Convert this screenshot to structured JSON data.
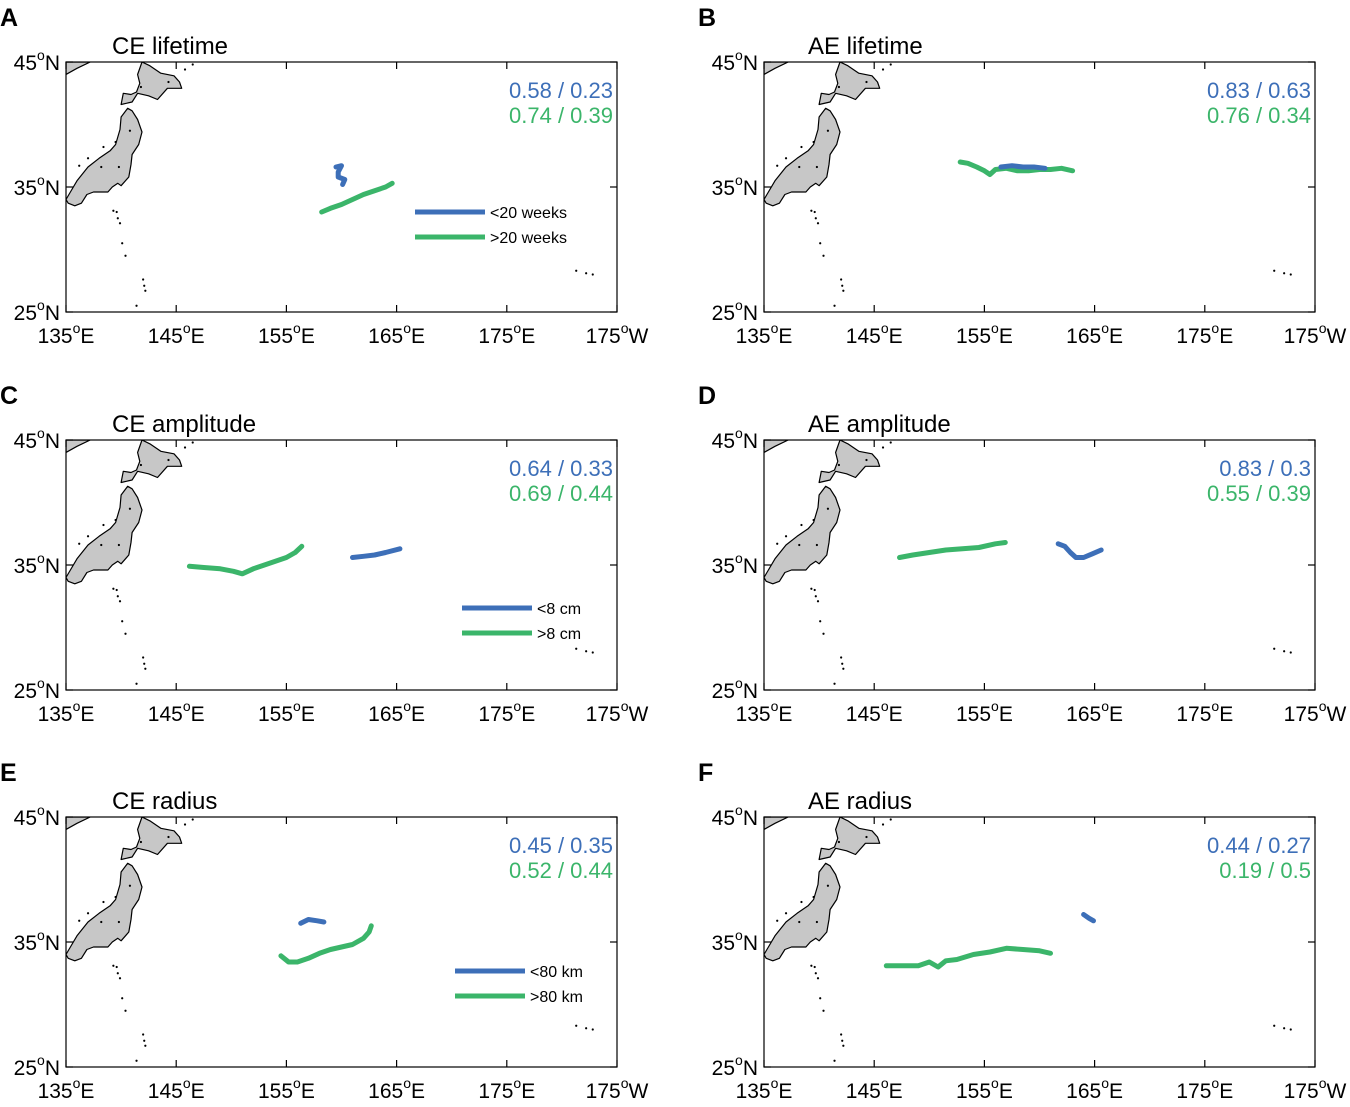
{
  "figure": {
    "type": "map",
    "colors": {
      "blue": "#3d6fb8",
      "green": "#3bb56a",
      "land": "#c7c7c7",
      "coast": "#000000"
    },
    "lat_labels": [
      {
        "value": 45,
        "num": "45",
        "hemi": "N"
      },
      {
        "value": 35,
        "num": "35",
        "hemi": "N"
      },
      {
        "value": 25,
        "num": "25",
        "hemi": "N"
      }
    ],
    "lon_labels": [
      {
        "value": 135,
        "num": "135",
        "hemi": "E"
      },
      {
        "value": 145,
        "num": "145",
        "hemi": "E"
      },
      {
        "value": 155,
        "num": "155",
        "hemi": "E"
      },
      {
        "value": 165,
        "num": "165",
        "hemi": "E"
      },
      {
        "value": 175,
        "num": "175",
        "hemi": "E"
      },
      {
        "value": 185,
        "num": "175",
        "hemi": "W"
      }
    ],
    "degree_symbol": "o",
    "extent": {
      "lon": [
        135,
        185
      ],
      "lat": [
        25,
        45
      ]
    }
  },
  "panels": [
    {
      "letter": "A",
      "title": "CE lifetime",
      "stats": {
        "blue": "0.58 / 0.23",
        "green": "0.74 / 0.39"
      },
      "legend": {
        "blue": "<20 weeks",
        "green": ">20 weeks"
      },
      "tracks": {
        "blue": [
          [
            159.5,
            36.6
          ],
          [
            160.0,
            36.7
          ],
          [
            159.7,
            36.2
          ],
          [
            159.7,
            35.8
          ],
          [
            160.3,
            35.6
          ],
          [
            160.1,
            35.2
          ]
        ],
        "green": [
          [
            158.2,
            33.0
          ],
          [
            159.0,
            33.3
          ],
          [
            160.0,
            33.6
          ],
          [
            161.0,
            34.0
          ],
          [
            162.0,
            34.4
          ],
          [
            163.0,
            34.7
          ],
          [
            164.0,
            35.0
          ],
          [
            164.6,
            35.3
          ]
        ]
      }
    },
    {
      "letter": "B",
      "title": "AE lifetime",
      "stats": {
        "blue": "0.83 / 0.63",
        "green": "0.76 / 0.34"
      },
      "legend": null,
      "tracks": {
        "blue": [
          [
            156.5,
            36.6
          ],
          [
            157.5,
            36.7
          ],
          [
            158.5,
            36.6
          ],
          [
            159.5,
            36.6
          ],
          [
            160.5,
            36.5
          ]
        ],
        "green": [
          [
            152.8,
            37.0
          ],
          [
            153.5,
            36.9
          ],
          [
            154.3,
            36.6
          ],
          [
            155.0,
            36.3
          ],
          [
            155.5,
            36.0
          ],
          [
            156.0,
            36.4
          ],
          [
            157.0,
            36.5
          ],
          [
            158.0,
            36.3
          ],
          [
            159.0,
            36.3
          ],
          [
            160.0,
            36.4
          ],
          [
            161.0,
            36.4
          ],
          [
            162.0,
            36.5
          ],
          [
            163.0,
            36.3
          ]
        ]
      }
    },
    {
      "letter": "C",
      "title": "CE amplitude",
      "stats": {
        "blue": "0.64 / 0.33",
        "green": "0.69 / 0.44"
      },
      "legend": {
        "blue": "<8 cm",
        "green": ">8 cm"
      },
      "tracks": {
        "blue": [
          [
            161.0,
            35.6
          ],
          [
            162.0,
            35.7
          ],
          [
            163.0,
            35.8
          ],
          [
            164.0,
            36.0
          ],
          [
            165.3,
            36.3
          ]
        ],
        "green": [
          [
            146.2,
            34.9
          ],
          [
            147.5,
            34.8
          ],
          [
            149.0,
            34.7
          ],
          [
            150.2,
            34.5
          ],
          [
            151.0,
            34.3
          ],
          [
            152.0,
            34.7
          ],
          [
            153.0,
            35.0
          ],
          [
            154.0,
            35.3
          ],
          [
            155.0,
            35.6
          ],
          [
            155.8,
            36.0
          ],
          [
            156.4,
            36.5
          ]
        ]
      }
    },
    {
      "letter": "D",
      "title": "AE amplitude",
      "stats": {
        "blue": "0.83 / 0.3",
        "green": "0.55 / 0.39"
      },
      "legend": null,
      "tracks": {
        "blue": [
          [
            161.7,
            36.7
          ],
          [
            162.3,
            36.5
          ],
          [
            162.8,
            36.0
          ],
          [
            163.3,
            35.6
          ],
          [
            164.0,
            35.6
          ],
          [
            164.8,
            35.9
          ],
          [
            165.6,
            36.2
          ]
        ],
        "green": [
          [
            147.3,
            35.6
          ],
          [
            148.5,
            35.8
          ],
          [
            150.0,
            36.0
          ],
          [
            151.5,
            36.2
          ],
          [
            153.0,
            36.3
          ],
          [
            154.5,
            36.4
          ],
          [
            156.0,
            36.7
          ],
          [
            156.9,
            36.8
          ]
        ]
      }
    },
    {
      "letter": "E",
      "title": "CE radius",
      "stats": {
        "blue": "0.45 / 0.35",
        "green": "0.52 / 0.44"
      },
      "legend": {
        "blue": "<80 km",
        "green": ">80 km"
      },
      "tracks": {
        "blue": [
          [
            156.3,
            36.5
          ],
          [
            157.0,
            36.8
          ],
          [
            157.8,
            36.7
          ],
          [
            158.4,
            36.6
          ]
        ],
        "green": [
          [
            154.5,
            33.9
          ],
          [
            155.2,
            33.4
          ],
          [
            156.0,
            33.4
          ],
          [
            157.0,
            33.7
          ],
          [
            158.0,
            34.1
          ],
          [
            159.0,
            34.4
          ],
          [
            160.0,
            34.6
          ],
          [
            161.0,
            34.8
          ],
          [
            162.0,
            35.3
          ],
          [
            162.5,
            35.8
          ],
          [
            162.7,
            36.3
          ]
        ]
      }
    },
    {
      "letter": "F",
      "title": "AE radius",
      "stats": {
        "blue": "0.44 / 0.27",
        "green": "0.19 / 0.5"
      },
      "legend": null,
      "tracks": {
        "blue": [
          [
            164.0,
            37.2
          ],
          [
            164.5,
            36.9
          ],
          [
            164.9,
            36.7
          ]
        ],
        "green": [
          [
            146.1,
            33.1
          ],
          [
            147.5,
            33.1
          ],
          [
            149.0,
            33.1
          ],
          [
            150.0,
            33.4
          ],
          [
            150.8,
            33.0
          ],
          [
            151.5,
            33.5
          ],
          [
            152.5,
            33.6
          ],
          [
            154.0,
            34.0
          ],
          [
            155.5,
            34.2
          ],
          [
            157.0,
            34.5
          ],
          [
            158.5,
            34.4
          ],
          [
            160.0,
            34.3
          ],
          [
            161.0,
            34.1
          ]
        ]
      }
    }
  ]
}
